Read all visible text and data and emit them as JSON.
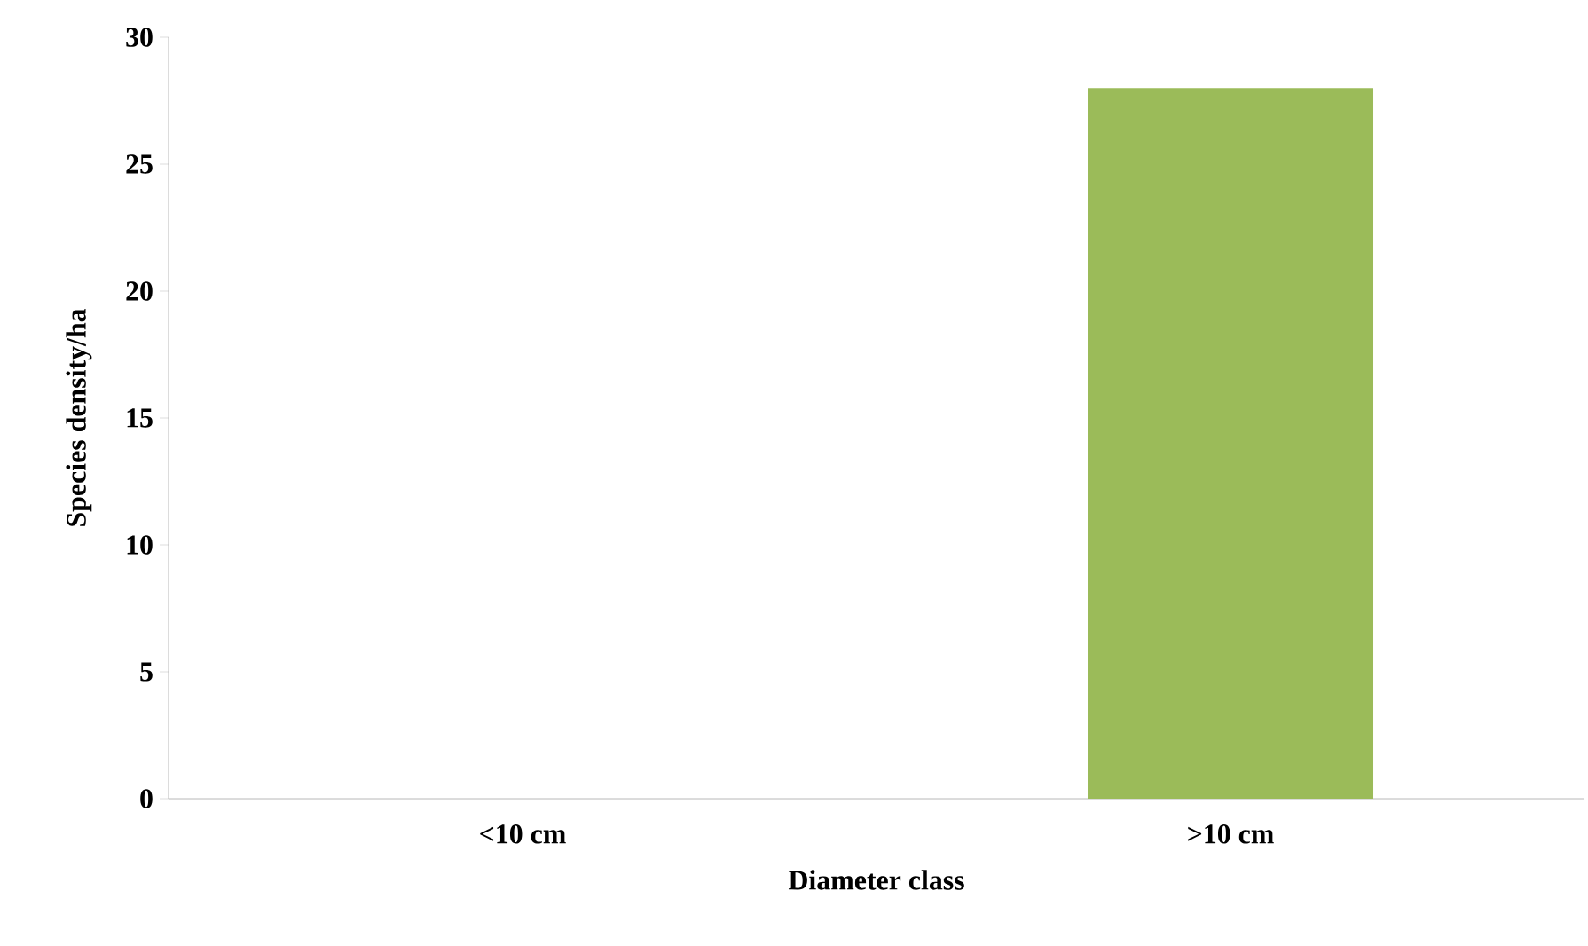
{
  "chart_data": {
    "type": "bar",
    "xlabel": "Diameter class",
    "ylabel": "Species density/ha",
    "categories": [
      "<10 cm",
      ">10 cm"
    ],
    "values": [
      0,
      28
    ],
    "color": "#9bbb59",
    "ylim": [
      0,
      30
    ],
    "yticks": [
      0,
      5,
      10,
      15,
      20,
      25,
      30
    ]
  }
}
